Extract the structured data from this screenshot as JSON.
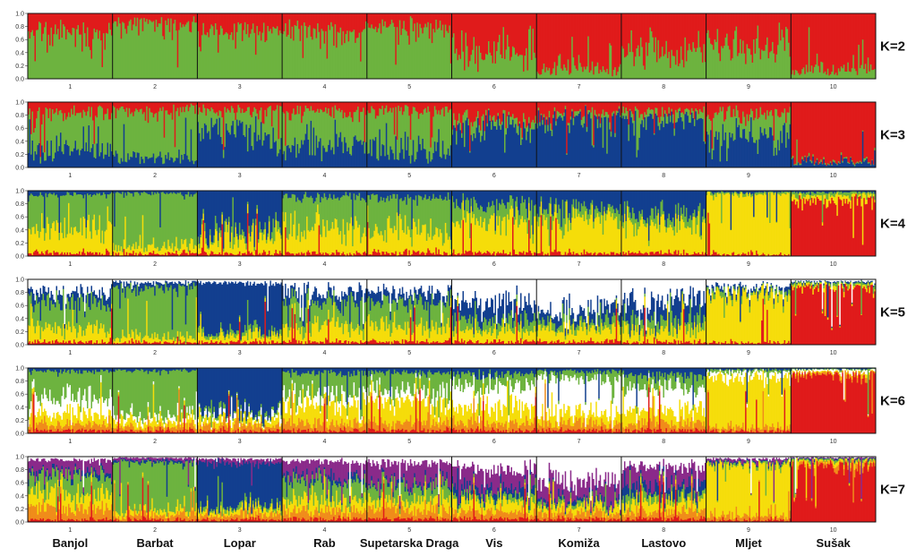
{
  "chart_data": {
    "type": "bar",
    "subtype": "stacked-admixture (STRUCTURE plot)",
    "y_ticks": [
      "1.0",
      "0.8",
      "0.6",
      "0.4",
      "0.2",
      "0.0"
    ],
    "ylim": [
      0,
      1
    ],
    "population_numbers": [
      "1",
      "2",
      "3",
      "4",
      "5",
      "6",
      "7",
      "8",
      "9",
      "10"
    ],
    "population_names": [
      "Banjol",
      "Barbat",
      "Lopar",
      "Rab",
      "Supetarska Draga",
      "Vis",
      "Komiža",
      "Lastovo",
      "Mljet",
      "Sušak"
    ],
    "colors": {
      "red": "#e01b1b",
      "green": "#6db33f",
      "blue": "#123f8f",
      "yellow": "#f5dd0a",
      "white": "#ffffff",
      "purple": "#8a2a8a",
      "orange": "#f08c1a",
      "gray": "#9a9ea6"
    },
    "panels": [
      {
        "label": "K=2",
        "components": [
          "green",
          "red"
        ],
        "proportions": [
          [
            0.72,
            0.28
          ],
          [
            0.86,
            0.14
          ],
          [
            0.7,
            0.3
          ],
          [
            0.72,
            0.28
          ],
          [
            0.8,
            0.2
          ],
          [
            0.42,
            0.58
          ],
          [
            0.18,
            0.82
          ],
          [
            0.42,
            0.58
          ],
          [
            0.55,
            0.45
          ],
          [
            0.15,
            0.85
          ]
        ]
      },
      {
        "label": "K=3",
        "components": [
          "blue",
          "green",
          "red"
        ],
        "proportions": [
          [
            0.28,
            0.55,
            0.17
          ],
          [
            0.15,
            0.72,
            0.13
          ],
          [
            0.55,
            0.3,
            0.15
          ],
          [
            0.35,
            0.5,
            0.15
          ],
          [
            0.28,
            0.58,
            0.14
          ],
          [
            0.62,
            0.12,
            0.26
          ],
          [
            0.75,
            0.06,
            0.19
          ],
          [
            0.72,
            0.12,
            0.16
          ],
          [
            0.48,
            0.35,
            0.17
          ],
          [
            0.08,
            0.02,
            0.9
          ]
        ]
      },
      {
        "label": "K=4",
        "components": [
          "red",
          "yellow",
          "green",
          "blue"
        ],
        "proportions": [
          [
            0.05,
            0.45,
            0.45,
            0.05
          ],
          [
            0.04,
            0.12,
            0.8,
            0.04
          ],
          [
            0.05,
            0.25,
            0.1,
            0.6
          ],
          [
            0.05,
            0.4,
            0.45,
            0.1
          ],
          [
            0.05,
            0.35,
            0.5,
            0.1
          ],
          [
            0.05,
            0.5,
            0.25,
            0.2
          ],
          [
            0.05,
            0.55,
            0.15,
            0.25
          ],
          [
            0.05,
            0.45,
            0.15,
            0.35
          ],
          [
            0.03,
            0.92,
            0.03,
            0.02
          ],
          [
            0.85,
            0.08,
            0.05,
            0.02
          ]
        ]
      },
      {
        "label": "K=5",
        "components": [
          "red",
          "yellow",
          "green",
          "blue",
          "white"
        ],
        "proportions": [
          [
            0.05,
            0.2,
            0.4,
            0.15,
            0.2
          ],
          [
            0.04,
            0.08,
            0.75,
            0.08,
            0.05
          ],
          [
            0.04,
            0.1,
            0.06,
            0.75,
            0.05
          ],
          [
            0.05,
            0.25,
            0.35,
            0.15,
            0.2
          ],
          [
            0.05,
            0.25,
            0.35,
            0.15,
            0.2
          ],
          [
            0.05,
            0.2,
            0.15,
            0.25,
            0.35
          ],
          [
            0.05,
            0.18,
            0.1,
            0.17,
            0.5
          ],
          [
            0.05,
            0.2,
            0.15,
            0.25,
            0.35
          ],
          [
            0.03,
            0.75,
            0.05,
            0.05,
            0.12
          ],
          [
            0.88,
            0.04,
            0.03,
            0.02,
            0.03
          ]
        ]
      },
      {
        "label": "K=6",
        "components": [
          "red",
          "orange",
          "yellow",
          "white",
          "green",
          "blue"
        ],
        "proportions": [
          [
            0.05,
            0.1,
            0.15,
            0.25,
            0.4,
            0.05
          ],
          [
            0.04,
            0.06,
            0.1,
            0.08,
            0.68,
            0.04
          ],
          [
            0.04,
            0.08,
            0.08,
            0.05,
            0.05,
            0.7
          ],
          [
            0.05,
            0.12,
            0.28,
            0.15,
            0.32,
            0.08
          ],
          [
            0.05,
            0.12,
            0.33,
            0.15,
            0.28,
            0.07
          ],
          [
            0.05,
            0.12,
            0.25,
            0.3,
            0.18,
            0.1
          ],
          [
            0.05,
            0.1,
            0.15,
            0.55,
            0.1,
            0.05
          ],
          [
            0.05,
            0.12,
            0.22,
            0.3,
            0.2,
            0.11
          ],
          [
            0.03,
            0.05,
            0.8,
            0.07,
            0.03,
            0.02
          ],
          [
            0.9,
            0.03,
            0.02,
            0.03,
            0.01,
            0.01
          ]
        ]
      },
      {
        "label": "K=7",
        "components": [
          "red",
          "orange",
          "yellow",
          "green",
          "blue",
          "purple",
          "white"
        ],
        "proportions": [
          [
            0.04,
            0.18,
            0.22,
            0.25,
            0.06,
            0.2,
            0.05
          ],
          [
            0.04,
            0.08,
            0.08,
            0.7,
            0.04,
            0.04,
            0.02
          ],
          [
            0.04,
            0.08,
            0.08,
            0.05,
            0.65,
            0.06,
            0.04
          ],
          [
            0.05,
            0.15,
            0.18,
            0.25,
            0.07,
            0.22,
            0.08
          ],
          [
            0.05,
            0.15,
            0.15,
            0.2,
            0.05,
            0.3,
            0.1
          ],
          [
            0.05,
            0.12,
            0.15,
            0.08,
            0.1,
            0.3,
            0.2
          ],
          [
            0.05,
            0.1,
            0.1,
            0.05,
            0.05,
            0.25,
            0.4
          ],
          [
            0.05,
            0.12,
            0.15,
            0.1,
            0.13,
            0.3,
            0.15
          ],
          [
            0.03,
            0.07,
            0.78,
            0.03,
            0.02,
            0.04,
            0.03
          ],
          [
            0.88,
            0.04,
            0.03,
            0.02,
            0.01,
            0.01,
            0.01
          ]
        ]
      }
    ]
  }
}
